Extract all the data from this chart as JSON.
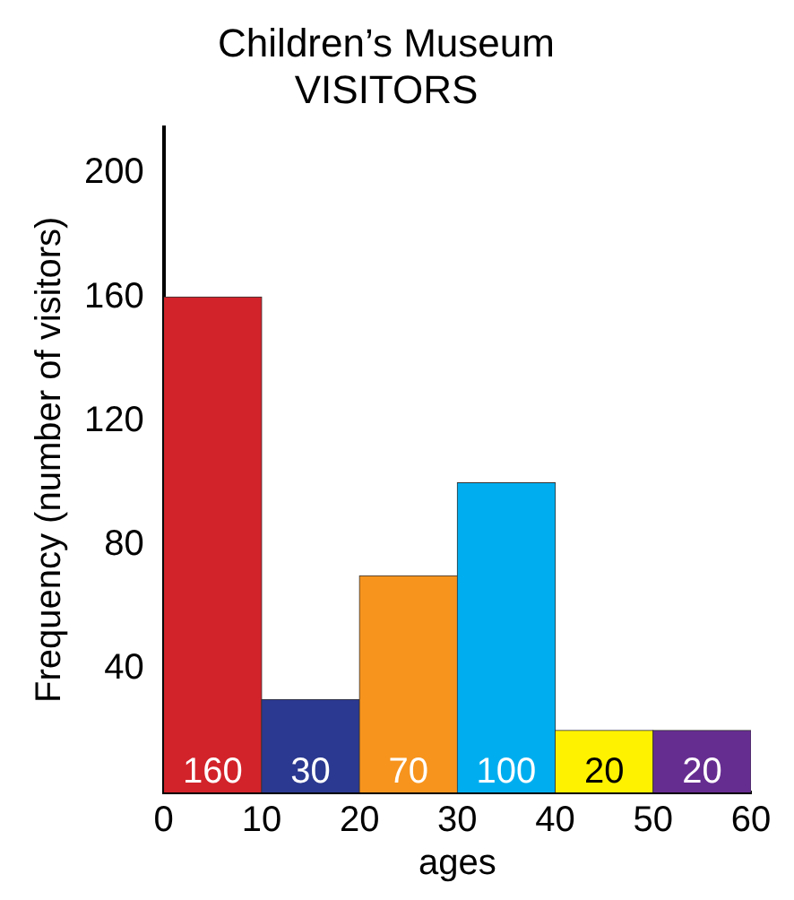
{
  "chart_data": {
    "type": "histogram",
    "title": "Children’s Museum\nVISITORS",
    "xlabel": "ages",
    "ylabel": "Frequency (number of visitors)",
    "bins": [
      0,
      10,
      20,
      30,
      40,
      50,
      60
    ],
    "values": [
      160,
      30,
      70,
      100,
      20,
      20
    ],
    "colors": [
      "#d2232a",
      "#2b3990",
      "#f7941d",
      "#00aeef",
      "#fff200",
      "#662d91"
    ],
    "xlim": [
      0,
      60
    ],
    "xticks": [
      0,
      10,
      20,
      30,
      40,
      50,
      60
    ],
    "ylim": [
      0,
      215
    ],
    "yticks": [
      40,
      80,
      120,
      160,
      200
    ],
    "grid": false,
    "legend": false,
    "data_labels": true
  }
}
